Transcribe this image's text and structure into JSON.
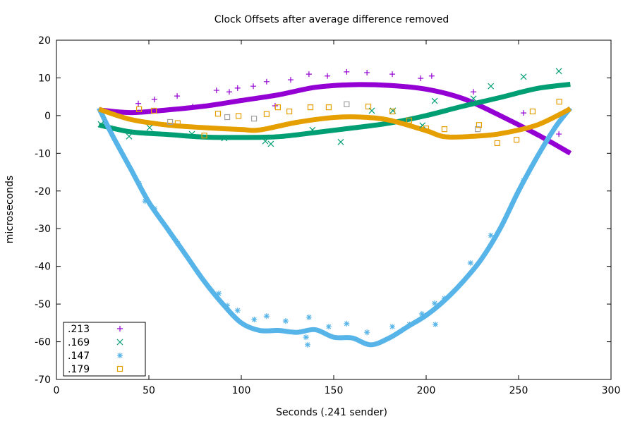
{
  "chart_data": {
    "type": "scatter",
    "title": "Clock Offsets after average difference removed",
    "xlabel": "Seconds (.241 sender)",
    "ylabel": "microseconds",
    "xlim": [
      0,
      300
    ],
    "ylim": [
      -70,
      20
    ],
    "xticks": [
      0,
      50,
      100,
      150,
      200,
      250,
      300
    ],
    "yticks": [
      -70,
      -60,
      -50,
      -40,
      -30,
      -20,
      -10,
      0,
      10,
      20
    ],
    "grid": false,
    "legend_position": "bottom-left",
    "series": [
      {
        "name": ".213",
        "marker": "plus",
        "color": "#9400d3",
        "points": [
          [
            44.3,
            3.2
          ],
          [
            53,
            4.3
          ],
          [
            65.3,
            5.2
          ],
          [
            73.7,
            2.4
          ],
          [
            86.6,
            6.7
          ],
          [
            93.5,
            6.3
          ],
          [
            98,
            7.3
          ],
          [
            106.5,
            7.8
          ],
          [
            113.7,
            9
          ],
          [
            118.3,
            2.6
          ],
          [
            126.7,
            9.5
          ],
          [
            136.6,
            11
          ],
          [
            146.6,
            10.5
          ],
          [
            157,
            11.6
          ],
          [
            168,
            11.4
          ],
          [
            181.7,
            11
          ],
          [
            197,
            9.9
          ],
          [
            203,
            10.5
          ],
          [
            225.6,
            6.3
          ],
          [
            252.7,
            0.7
          ],
          [
            271.8,
            -4.9
          ]
        ],
        "smooth": [
          [
            23,
            1.5
          ],
          [
            40,
            0.8
          ],
          [
            60,
            1.5
          ],
          [
            80,
            2.5
          ],
          [
            100,
            4
          ],
          [
            120,
            5.5
          ],
          [
            140,
            7.5
          ],
          [
            160,
            8.2
          ],
          [
            180,
            8
          ],
          [
            200,
            7
          ],
          [
            220,
            4.5
          ],
          [
            240,
            0
          ],
          [
            260,
            -5
          ],
          [
            278,
            -10
          ]
        ]
      },
      {
        "name": ".169",
        "marker": "cross",
        "color": "#009e73",
        "points": [
          [
            24,
            -2.3
          ],
          [
            39.3,
            -5.5
          ],
          [
            50.4,
            -3.2
          ],
          [
            73.3,
            -4.9
          ],
          [
            90.8,
            -6
          ],
          [
            113,
            -6.8
          ],
          [
            116,
            -7.5
          ],
          [
            138.5,
            -3.8
          ],
          [
            153.8,
            -7
          ],
          [
            170.6,
            1.3
          ],
          [
            182,
            1.3
          ],
          [
            198,
            -2.6
          ],
          [
            204.6,
            3.9
          ],
          [
            225.6,
            4.5
          ],
          [
            235,
            7.8
          ],
          [
            252.7,
            10.3
          ],
          [
            271.8,
            11.8
          ]
        ],
        "smooth": [
          [
            23,
            -2.5
          ],
          [
            40,
            -4.3
          ],
          [
            60,
            -5
          ],
          [
            80,
            -5.7
          ],
          [
            100,
            -5.8
          ],
          [
            120,
            -5.6
          ],
          [
            140,
            -4.5
          ],
          [
            160,
            -3.3
          ],
          [
            180,
            -2
          ],
          [
            200,
            0
          ],
          [
            220,
            2.5
          ],
          [
            240,
            4.8
          ],
          [
            260,
            7.2
          ],
          [
            278,
            8.3
          ]
        ]
      },
      {
        "name": ".147",
        "marker": "star",
        "color": "#56b4e9",
        "points": [
          [
            44.7,
            -18
          ],
          [
            48,
            -22.7
          ],
          [
            53,
            -24.7
          ],
          [
            65.6,
            -33.9
          ],
          [
            87.8,
            -47.2
          ],
          [
            92.4,
            -50.4
          ],
          [
            98,
            -51.7
          ],
          [
            107,
            -54.1
          ],
          [
            113.7,
            -53.2
          ],
          [
            124,
            -54.5
          ],
          [
            135,
            -58.8
          ],
          [
            135.9,
            -60.8
          ],
          [
            136.6,
            -53.5
          ],
          [
            147.3,
            -56
          ],
          [
            157,
            -55.2
          ],
          [
            168,
            -57.5
          ],
          [
            181.7,
            -56
          ],
          [
            191,
            -55.4
          ],
          [
            197.7,
            -52.6
          ],
          [
            204.6,
            -49.8
          ],
          [
            205,
            -55.4
          ],
          [
            209.9,
            -48.5
          ],
          [
            224,
            -39.1
          ],
          [
            235,
            -31.8
          ],
          [
            252.7,
            -17.2
          ]
        ],
        "smooth": [
          [
            23,
            2
          ],
          [
            30,
            -5
          ],
          [
            40,
            -14
          ],
          [
            50,
            -23
          ],
          [
            60,
            -30
          ],
          [
            70,
            -37
          ],
          [
            80,
            -44
          ],
          [
            90,
            -50
          ],
          [
            100,
            -55
          ],
          [
            110,
            -57
          ],
          [
            120,
            -57
          ],
          [
            130,
            -57.5
          ],
          [
            140,
            -56.8
          ],
          [
            150,
            -58.8
          ],
          [
            160,
            -59
          ],
          [
            170,
            -60.8
          ],
          [
            180,
            -59
          ],
          [
            190,
            -56
          ],
          [
            200,
            -53
          ],
          [
            210,
            -49
          ],
          [
            220,
            -44
          ],
          [
            230,
            -38
          ],
          [
            240,
            -30
          ],
          [
            250,
            -20
          ],
          [
            260,
            -11
          ],
          [
            270,
            -3
          ],
          [
            278,
            2
          ]
        ]
      },
      {
        "name": ".179",
        "marker": "square",
        "color": "#e69f00",
        "points": [
          [
            44.7,
            1.7
          ],
          [
            52.7,
            1.3
          ],
          [
            65.6,
            -2
          ],
          [
            80,
            -5.3
          ],
          [
            87.4,
            0.5
          ],
          [
            98.5,
            -0.1
          ],
          [
            113.7,
            0.4
          ],
          [
            119.8,
            2.2
          ],
          [
            126,
            1.1
          ],
          [
            137.4,
            2.2
          ],
          [
            147.3,
            2.2
          ],
          [
            168.7,
            2.4
          ],
          [
            181.7,
            1.1
          ],
          [
            190.8,
            -1.3
          ],
          [
            200,
            -3.4
          ],
          [
            209.9,
            -3.6
          ],
          [
            228.6,
            -2.5
          ],
          [
            238.5,
            -7.3
          ],
          [
            248.9,
            -6.4
          ],
          [
            257.6,
            1.1
          ],
          [
            272,
            3.7
          ]
        ],
        "smooth": [
          [
            23,
            1.7
          ],
          [
            40,
            -1
          ],
          [
            60,
            -2.5
          ],
          [
            80,
            -3.2
          ],
          [
            100,
            -3.7
          ],
          [
            110,
            -3.8
          ],
          [
            130,
            -1.8
          ],
          [
            150,
            -0.5
          ],
          [
            165,
            -0.4
          ],
          [
            180,
            -1.2
          ],
          [
            200,
            -4
          ],
          [
            210,
            -5.6
          ],
          [
            225,
            -5.5
          ],
          [
            240,
            -4.8
          ],
          [
            260,
            -2.5
          ],
          [
            278,
            1.8
          ]
        ]
      }
    ],
    "extra_points": [
      {
        "marker": "square",
        "color": "#a0a0a0",
        "points": [
          [
            61.5,
            -1.7
          ],
          [
            92.4,
            -0.4
          ],
          [
            106.9,
            -0.8
          ],
          [
            157,
            3
          ],
          [
            227.9,
            -3.6
          ]
        ]
      }
    ]
  }
}
